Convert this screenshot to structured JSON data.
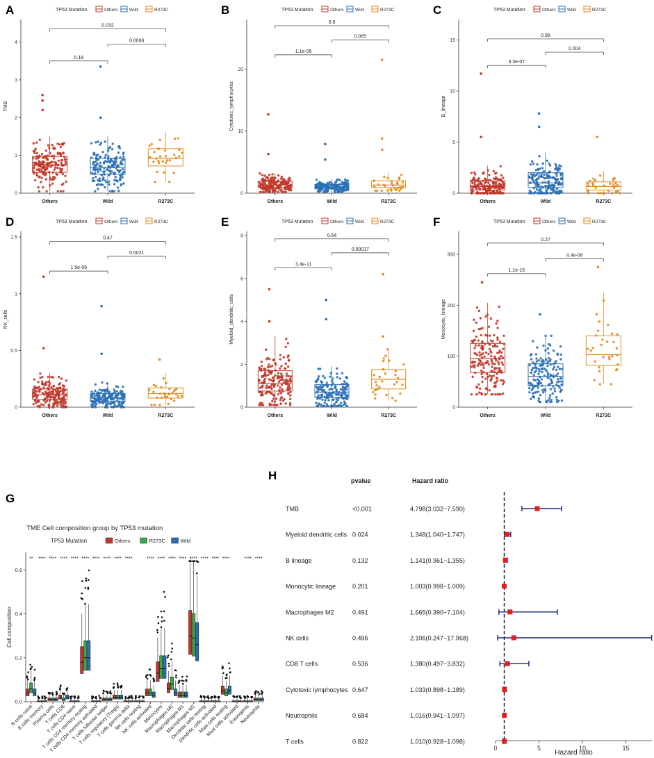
{
  "colors": {
    "others": "#c0392b",
    "wild": "#2a6fb5",
    "r273c": "#e08a1e",
    "r273c_green": "#3aa847",
    "forest_marker": "#e02020",
    "forest_line": "#1a237e",
    "axis": "#333333"
  },
  "legend": {
    "title": "TP53 Mutation",
    "items": [
      "Others",
      "Wild",
      "R273C"
    ]
  },
  "groups": [
    "Others",
    "Wild",
    "R273C"
  ],
  "chart_data": [
    {
      "type": "box",
      "panel": "A",
      "ylabel": "TMB",
      "ylim": [
        0,
        4.6
      ],
      "yticks": [
        0,
        1,
        2,
        3,
        4
      ],
      "boxes": [
        {
          "group": "Others",
          "q1": 0.55,
          "median": 0.75,
          "q3": 0.97,
          "whisker_low": 0.05,
          "whisker_high": 1.5
        },
        {
          "group": "Wild",
          "q1": 0.5,
          "median": 0.68,
          "q3": 0.92,
          "whisker_low": 0.05,
          "whisker_high": 1.5
        },
        {
          "group": "R273C",
          "q1": 0.72,
          "median": 0.92,
          "q3": 1.18,
          "whisker_low": 0.3,
          "whisker_high": 1.62
        }
      ],
      "outliers": [
        {
          "group": "Others",
          "value": 2.6
        },
        {
          "group": "Others",
          "value": 2.45
        },
        {
          "group": "Others",
          "value": 2.2
        },
        {
          "group": "Wild",
          "value": 3.35
        },
        {
          "group": "Wild",
          "value": 2.0
        }
      ],
      "comparisons": [
        {
          "pair": [
            0,
            1
          ],
          "label": "0.18",
          "y": 3.5
        },
        {
          "pair": [
            1,
            2
          ],
          "label": "0.0066",
          "y": 3.95
        },
        {
          "pair": [
            0,
            2
          ],
          "label": "0.032",
          "y": 4.35
        }
      ]
    },
    {
      "type": "box",
      "panel": "B",
      "ylabel": "Cytotoxic_lymphocytes",
      "ylim": [
        0,
        28
      ],
      "yticks": [
        0,
        10,
        20
      ],
      "boxes": [
        {
          "group": "Others",
          "q1": 0.9,
          "median": 1.3,
          "q3": 1.9,
          "whisker_low": 0.2,
          "whisker_high": 3.2
        },
        {
          "group": "Wild",
          "q1": 0.7,
          "median": 1.0,
          "q3": 1.4,
          "whisker_low": 0.2,
          "whisker_high": 2.2
        },
        {
          "group": "R273C",
          "q1": 0.9,
          "median": 1.3,
          "q3": 2.0,
          "whisker_low": 0.4,
          "whisker_high": 3.3
        }
      ],
      "outliers": [
        {
          "group": "Others",
          "value": 12.7
        },
        {
          "group": "Others",
          "value": 6.3
        },
        {
          "group": "Wild",
          "value": 7.9
        },
        {
          "group": "Wild",
          "value": 5.4
        },
        {
          "group": "R273C",
          "value": 21.5
        },
        {
          "group": "R273C",
          "value": 8.8
        },
        {
          "group": "R273C",
          "value": 7.0
        }
      ],
      "comparisons": [
        {
          "pair": [
            0,
            1
          ],
          "label": "1.1e-05",
          "y": 22.3
        },
        {
          "pair": [
            1,
            2
          ],
          "label": "0.065",
          "y": 24.7
        },
        {
          "pair": [
            0,
            2
          ],
          "label": "0.6",
          "y": 27.0
        }
      ]
    },
    {
      "type": "box",
      "panel": "C",
      "ylabel": "B_lineage",
      "ylim": [
        0,
        17
      ],
      "yticks": [
        0,
        5,
        10,
        15
      ],
      "boxes": [
        {
          "group": "Others",
          "q1": 0.3,
          "median": 0.65,
          "q3": 1.2,
          "whisker_low": 0.0,
          "whisker_high": 2.7
        },
        {
          "group": "Wild",
          "q1": 0.55,
          "median": 1.0,
          "q3": 2.0,
          "whisker_low": 0.0,
          "whisker_high": 4.0
        },
        {
          "group": "R273C",
          "q1": 0.3,
          "median": 0.65,
          "q3": 1.1,
          "whisker_low": 0.0,
          "whisker_high": 2.2
        }
      ],
      "outliers": [
        {
          "group": "Others",
          "value": 11.7
        },
        {
          "group": "Others",
          "value": 5.5
        },
        {
          "group": "Wild",
          "value": 7.8
        },
        {
          "group": "Wild",
          "value": 6.5
        },
        {
          "group": "R273C",
          "value": 5.5
        }
      ],
      "comparisons": [
        {
          "pair": [
            0,
            1
          ],
          "label": "3.3e-07",
          "y": 12.5
        },
        {
          "pair": [
            1,
            2
          ],
          "label": "0.004",
          "y": 13.8
        },
        {
          "pair": [
            0,
            2
          ],
          "label": "0.98",
          "y": 15.1
        }
      ]
    },
    {
      "type": "box",
      "panel": "D",
      "ylabel": "NK_cells",
      "ylim": [
        0,
        1.55
      ],
      "yticks": [
        0.0,
        0.5,
        1.0,
        1.5
      ],
      "boxes": [
        {
          "group": "Others",
          "q1": 0.07,
          "median": 0.11,
          "q3": 0.16,
          "whisker_low": 0.0,
          "whisker_high": 0.3
        },
        {
          "group": "Wild",
          "q1": 0.05,
          "median": 0.08,
          "q3": 0.12,
          "whisker_low": 0.0,
          "whisker_high": 0.22
        },
        {
          "group": "R273C",
          "q1": 0.08,
          "median": 0.12,
          "q3": 0.17,
          "whisker_low": 0.02,
          "whisker_high": 0.3
        }
      ],
      "outliers": [
        {
          "group": "Others",
          "value": 1.15
        },
        {
          "group": "Others",
          "value": 0.52
        },
        {
          "group": "Wild",
          "value": 0.89
        },
        {
          "group": "Wild",
          "value": 0.47
        },
        {
          "group": "R273C",
          "value": 0.42
        }
      ],
      "comparisons": [
        {
          "pair": [
            0,
            1
          ],
          "label": "1.5e-06",
          "y": 1.2
        },
        {
          "pair": [
            1,
            2
          ],
          "label": "0.0021",
          "y": 1.33
        },
        {
          "pair": [
            0,
            2
          ],
          "label": "0.47",
          "y": 1.46
        }
      ]
    },
    {
      "type": "box",
      "panel": "E",
      "ylabel": "Myeloid_dendritic_cells",
      "ylim": [
        0,
        8.2
      ],
      "yticks": [
        0,
        2,
        4,
        6,
        8
      ],
      "boxes": [
        {
          "group": "Others",
          "q1": 0.75,
          "median": 1.1,
          "q3": 1.7,
          "whisker_low": 0.1,
          "whisker_high": 3.3
        },
        {
          "group": "Wild",
          "q1": 0.45,
          "median": 0.7,
          "q3": 1.05,
          "whisker_low": 0.05,
          "whisker_high": 1.9
        },
        {
          "group": "R273C",
          "q1": 0.85,
          "median": 1.3,
          "q3": 1.75,
          "whisker_low": 0.3,
          "whisker_high": 2.7
        }
      ],
      "outliers": [
        {
          "group": "Others",
          "value": 5.5
        },
        {
          "group": "Others",
          "value": 4.0
        },
        {
          "group": "Wild",
          "value": 5.0
        },
        {
          "group": "Wild",
          "value": 4.1
        },
        {
          "group": "R273C",
          "value": 6.2
        },
        {
          "group": "R273C",
          "value": 3.3
        }
      ],
      "comparisons": [
        {
          "pair": [
            0,
            1
          ],
          "label": "3.4e-11",
          "y": 6.5
        },
        {
          "pair": [
            1,
            2
          ],
          "label": "0.00017",
          "y": 7.2
        },
        {
          "pair": [
            0,
            2
          ],
          "label": "0.64",
          "y": 7.85
        }
      ]
    },
    {
      "type": "box",
      "panel": "F",
      "ylabel": "Monocytic_lineage",
      "ylim": [
        0,
        345
      ],
      "yticks": [
        0,
        100,
        200,
        300
      ],
      "boxes": [
        {
          "group": "Others",
          "q1": 68,
          "median": 95,
          "q3": 125,
          "whisker_low": 25,
          "whisker_high": 205
        },
        {
          "group": "Wild",
          "q1": 42,
          "median": 60,
          "q3": 85,
          "whisker_low": 10,
          "whisker_high": 140
        },
        {
          "group": "R273C",
          "q1": 82,
          "median": 103,
          "q3": 140,
          "whisker_low": 45,
          "whisker_high": 225
        }
      ],
      "outliers": [
        {
          "group": "Others",
          "value": 245
        },
        {
          "group": "Wild",
          "value": 182
        },
        {
          "group": "R273C",
          "value": 275
        }
      ],
      "comparisons": [
        {
          "pair": [
            0,
            1
          ],
          "label": "1.1e-15",
          "y": 262
        },
        {
          "pair": [
            1,
            2
          ],
          "label": "4.4e-08",
          "y": 291
        },
        {
          "pair": [
            0,
            2
          ],
          "label": "0.27",
          "y": 322
        }
      ]
    },
    {
      "type": "box",
      "panel": "G",
      "title": "TME Cell composition group by TP53 mutation",
      "ylabel": "Cell composition",
      "ylim": [
        0,
        0.68
      ],
      "yticks": [
        0.0,
        0.2,
        0.4,
        0.6
      ],
      "legend": {
        "title": "TP53 Mutation",
        "items": [
          "Others",
          "R273C",
          "Wild"
        ]
      },
      "categories": [
        "B cells naive",
        "B cells memory",
        "Plasma cells",
        "T cells CD8",
        "T cells CD4 naive",
        "T cells CD4 memory resting",
        "T cells CD4 memory activated",
        "T cells follicular helper",
        "T cells regulatory (Tregs)",
        "T cells gamma delta",
        "NK cells resting",
        "NK cells activated",
        "Monocytes",
        "Macrophages M0",
        "Macrophages M1",
        "Macrophages M2",
        "Dendritic cells resting",
        "Dendritic cells activated",
        "Mast cells resting",
        "Mast cells activated",
        "Eosinophils",
        "Neutrophils"
      ],
      "significance": [
        "**",
        "****",
        "****",
        "****",
        "****",
        "****",
        "****",
        "****",
        "****",
        "****",
        "",
        "****",
        "****",
        "****",
        "****",
        "****",
        "****",
        "****",
        "****",
        "",
        "****",
        "****"
      ],
      "series": [
        {
          "name": "Others",
          "medians": [
            0.04,
            0.0,
            0.01,
            0.02,
            0.0,
            0.18,
            0.0,
            0.01,
            0.02,
            0.0,
            0.0,
            0.04,
            0.13,
            0.06,
            0.03,
            0.3,
            0.0,
            0.0,
            0.05,
            0.0,
            0.0,
            0.01
          ]
        },
        {
          "name": "R273C",
          "medians": [
            0.06,
            0.0,
            0.01,
            0.01,
            0.0,
            0.2,
            0.0,
            0.01,
            0.02,
            0.0,
            0.0,
            0.04,
            0.15,
            0.08,
            0.03,
            0.29,
            0.0,
            0.0,
            0.04,
            0.0,
            0.0,
            0.01
          ]
        },
        {
          "name": "Wild",
          "medians": [
            0.04,
            0.0,
            0.01,
            0.02,
            0.0,
            0.2,
            0.0,
            0.01,
            0.02,
            0.0,
            0.0,
            0.03,
            0.15,
            0.04,
            0.03,
            0.26,
            0.0,
            0.0,
            0.05,
            0.0,
            0.0,
            0.01
          ]
        }
      ]
    },
    {
      "type": "forest",
      "panel": "H",
      "xlabel": "Hazard ratio",
      "xlim": [
        0,
        18
      ],
      "xticks": [
        0,
        5,
        10,
        15
      ],
      "reference": 1,
      "headers": {
        "pvalue": "pvalue",
        "hr": "Hazard ratio"
      },
      "rows": [
        {
          "label": "TMB",
          "pvalue": "<0.001",
          "hr_text": "4.798(3.032−7.590)",
          "hr": 4.798,
          "lo": 3.032,
          "hi": 7.59
        },
        {
          "label": "Myeloid dendritic cells",
          "pvalue": "0.024",
          "hr_text": "1.348(1.040−1.747)",
          "hr": 1.348,
          "lo": 1.04,
          "hi": 1.747
        },
        {
          "label": "B lineage",
          "pvalue": "0.132",
          "hr_text": "1.141(0.961−1.355)",
          "hr": 1.141,
          "lo": 0.961,
          "hi": 1.355
        },
        {
          "label": "Monocytic lineage",
          "pvalue": "0.201",
          "hr_text": "1.003(0.998−1.009)",
          "hr": 1.003,
          "lo": 0.998,
          "hi": 1.009
        },
        {
          "label": "Macrophages M2",
          "pvalue": "0.491",
          "hr_text": "1.665(0.390−7.104)",
          "hr": 1.665,
          "lo": 0.39,
          "hi": 7.104
        },
        {
          "label": "NK cells",
          "pvalue": "0.496",
          "hr_text": "2.106(0.247−17.968)",
          "hr": 2.106,
          "lo": 0.247,
          "hi": 17.968
        },
        {
          "label": "CD8 T cells",
          "pvalue": "0.536",
          "hr_text": "1.380(0.497−3.832)",
          "hr": 1.38,
          "lo": 0.497,
          "hi": 3.832
        },
        {
          "label": "Cytotoxic lymphocytes",
          "pvalue": "0.647",
          "hr_text": "1.033(0.898−1.189)",
          "hr": 1.033,
          "lo": 0.898,
          "hi": 1.189
        },
        {
          "label": "Neutrophils",
          "pvalue": "0.684",
          "hr_text": "1.016(0.941−1.097)",
          "hr": 1.016,
          "lo": 0.941,
          "hi": 1.097
        },
        {
          "label": "T cells",
          "pvalue": "0.822",
          "hr_text": "1.010(0.928−1.098)",
          "hr": 1.01,
          "lo": 0.928,
          "hi": 1.098
        }
      ]
    }
  ]
}
